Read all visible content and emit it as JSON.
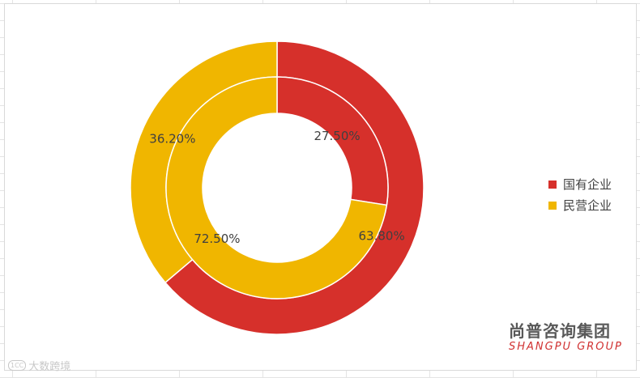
{
  "chart_data": {
    "type": "donut",
    "series": [
      {
        "ring": "outer",
        "values": [
          63.8,
          36.2
        ],
        "labels": [
          "63.80%",
          "36.20%"
        ]
      },
      {
        "ring": "inner",
        "values": [
          27.5,
          72.5
        ],
        "labels": [
          "27.50%",
          "72.50%"
        ]
      }
    ],
    "categories": [
      "国有企业",
      "民营企业"
    ],
    "colors": [
      "#d6302b",
      "#f0b600"
    ],
    "legend_position": "right"
  },
  "brand": {
    "name_cn": "尚普咨询集团",
    "name_en": "SHANGPU GROUP"
  },
  "watermark": {
    "badge": "1CC",
    "text": "大数跨境"
  }
}
